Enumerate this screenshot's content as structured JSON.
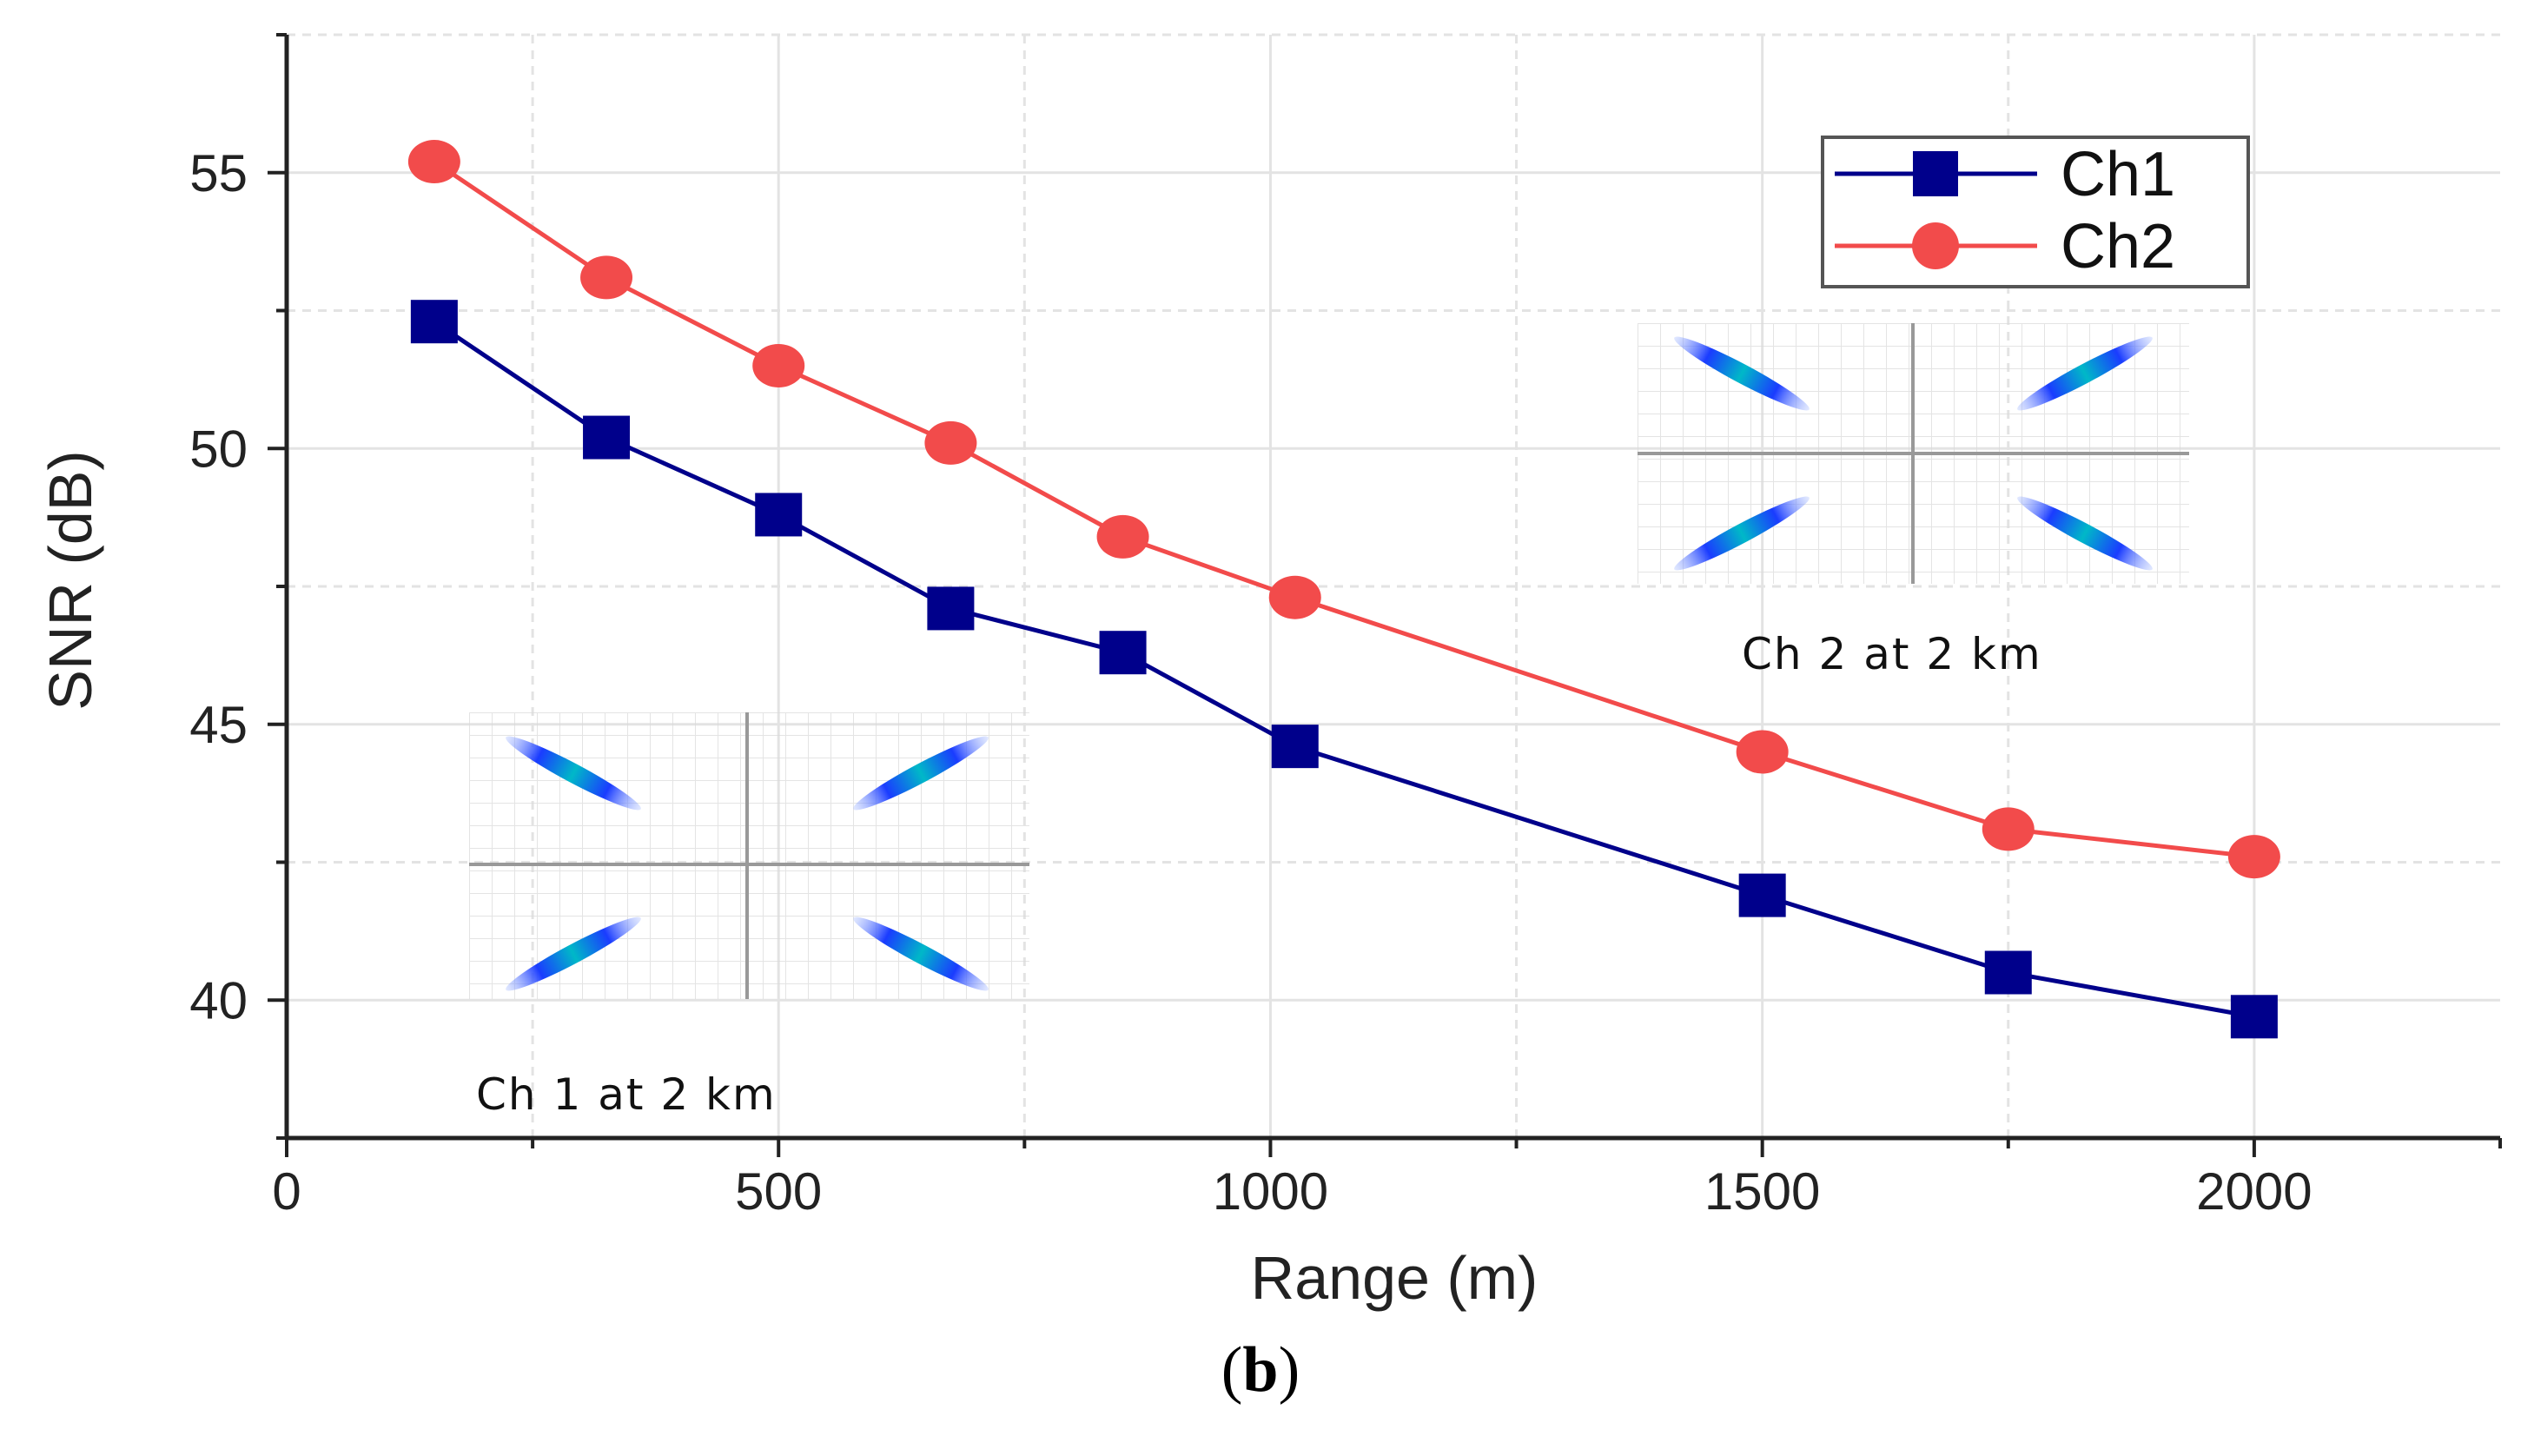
{
  "chart_data": {
    "type": "line",
    "xlabel": "Range (m)",
    "ylabel": "SNR (dB)",
    "xlim": [
      0,
      2250
    ],
    "ylim": [
      37.5,
      57.5
    ],
    "x_ticks": [
      0,
      500,
      1000,
      1500,
      2000
    ],
    "y_ticks": [
      40,
      45,
      50,
      55
    ],
    "grid": true,
    "legend_position": "top-right",
    "series": [
      {
        "name": "Ch1",
        "color": "#00008b",
        "marker": "square",
        "x": [
          150,
          325,
          500,
          675,
          850,
          1025,
          1500,
          1750,
          2000
        ],
        "y": [
          52.3,
          50.2,
          48.8,
          47.1,
          46.3,
          44.6,
          41.9,
          40.5,
          39.7
        ]
      },
      {
        "name": "Ch2",
        "color": "#f24b4b",
        "marker": "circle",
        "x": [
          150,
          325,
          500,
          675,
          850,
          1025,
          1500,
          1750,
          2000
        ],
        "y": [
          55.2,
          53.1,
          51.5,
          50.1,
          48.4,
          47.3,
          44.5,
          43.1,
          42.6
        ]
      }
    ],
    "insets": [
      {
        "caption": "Ch 2 at 2 km",
        "description_icon": "constellation-diagram"
      },
      {
        "caption": "Ch 1 at 2 km",
        "description_icon": "constellation-diagram"
      }
    ]
  },
  "panel_label": "b"
}
